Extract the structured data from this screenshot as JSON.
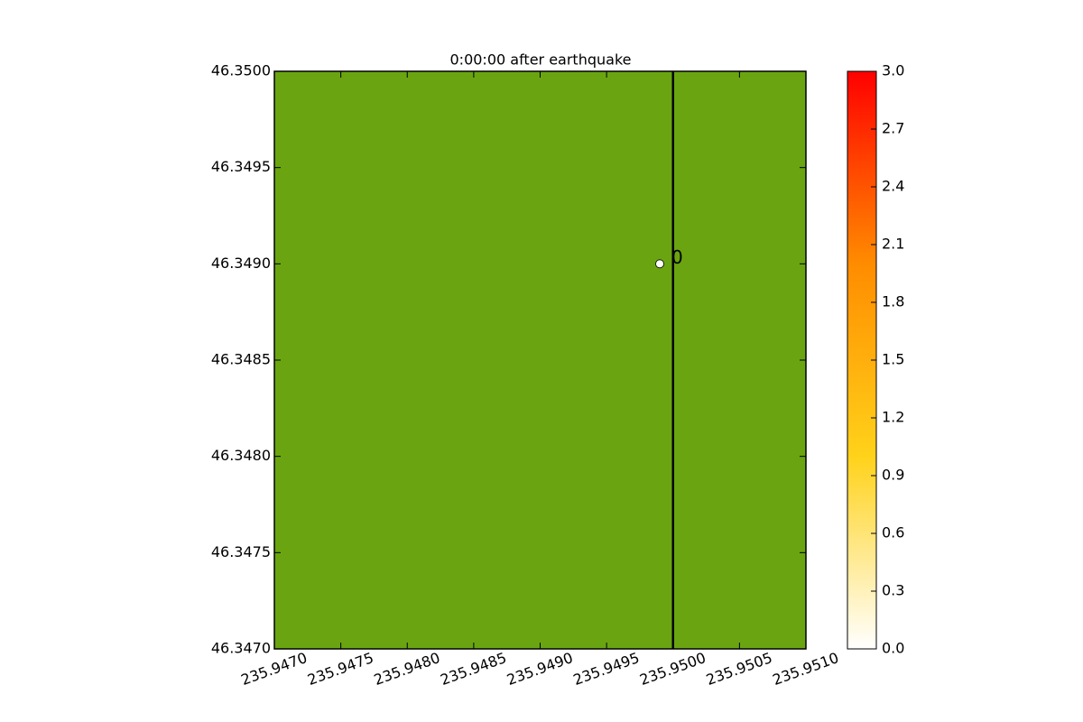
{
  "chart_data": {
    "type": "map",
    "title": "0:00:00 after earthquake",
    "background_color": "#6aa511",
    "xlim": [
      235.947,
      235.951
    ],
    "xticks": [
      {
        "value": 235.947,
        "label": "235.9470"
      },
      235.9475,
      {
        "value": 235.948,
        "label": "235.9480"
      },
      235.9485,
      {
        "value": 235.949,
        "label": "235.9490"
      },
      235.9495,
      {
        "value": 235.95,
        "label": "235.9500"
      },
      235.9505,
      {
        "value": 235.951,
        "label": "235.9510"
      }
    ],
    "ylim": [
      46.347,
      46.35
    ],
    "yticks": [
      {
        "value": 46.347,
        "label": "46.3470"
      },
      46.3475,
      {
        "value": 46.348,
        "label": "46.3480"
      },
      46.3485,
      {
        "value": 46.349,
        "label": "46.3490"
      },
      46.3495,
      {
        "value": 46.35,
        "label": "46.3500"
      }
    ],
    "vlines": [
      235.95
    ],
    "points": [
      {
        "x": 235.9499,
        "y": 46.349,
        "label": "0"
      }
    ],
    "colorbar": {
      "lim": [
        0,
        3
      ],
      "ticks": [
        {
          "value": 0,
          "label": "0.0"
        },
        0.3,
        0.6,
        0.9,
        1.2,
        1.5,
        1.8,
        2.1,
        2.4,
        2.7,
        {
          "value": 3,
          "label": "3.0"
        }
      ],
      "colors": [
        "#ffffff",
        "#ffd21a",
        "#ff8c00",
        "#ff0000"
      ]
    }
  }
}
